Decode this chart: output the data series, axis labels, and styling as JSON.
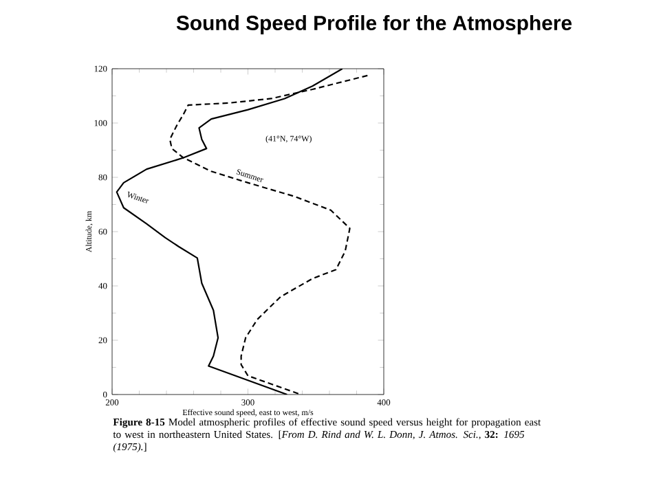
{
  "chart_data": {
    "type": "line",
    "title": "Sound Speed Profile for the Atmosphere",
    "xlabel": "Effective sound speed, east to west, m/s",
    "ylabel": "Altitude, km",
    "xlim": [
      200,
      400
    ],
    "ylim": [
      0,
      120
    ],
    "xticks": [
      200,
      300,
      400
    ],
    "yticks": [
      0,
      20,
      40,
      60,
      80,
      100,
      120
    ],
    "grid": false,
    "legend": false,
    "series": [
      {
        "name": "Winter",
        "color": "#000000",
        "line_style": "solid",
        "x": [
          369.5,
          347.5,
          327,
          300,
          273,
          264,
          266,
          269.5,
          252.5,
          225.4,
          208.5,
          203.4,
          208.5,
          225.4,
          239,
          249,
          262.7,
          266,
          274.6,
          278,
          274.6,
          271,
          328.8
        ],
        "values": [
          120,
          113.6,
          109,
          104.9,
          101.5,
          98.2,
          94,
          90.6,
          87.2,
          83,
          78,
          74.6,
          68.8,
          62.9,
          57.8,
          54.5,
          50.3,
          41,
          31,
          20.9,
          14.2,
          10.5,
          0
        ]
      },
      {
        "name": "Summer",
        "color": "#000000",
        "line_style": "dashed",
        "x": [
          388,
          347.5,
          317,
          286.4,
          256,
          252.5,
          247.5,
          242.5,
          244,
          252.5,
          273,
          300,
          334,
          361,
          375,
          371.6,
          364.8,
          347.5,
          324,
          306.8,
          298.3,
          295,
          295,
          300,
          339
        ],
        "values": [
          117.5,
          112.4,
          109,
          107.4,
          106.6,
          103.2,
          99,
          94,
          90.6,
          87.2,
          82.2,
          78,
          73,
          67.9,
          61.2,
          52.8,
          46,
          42.7,
          36,
          27.6,
          20.9,
          14.2,
          11,
          6.9,
          0
        ]
      }
    ],
    "annotations": [
      "(41°N, 74°W)",
      "**Figure 8-15** Model atmospheric profiles of effective sound speed versus height for propagation east to west in northeastern United States. [*From D. Rind and W. L. Donn, J. Atmos. Sci.,* **32:** *1695 (1975).*]"
    ]
  }
}
